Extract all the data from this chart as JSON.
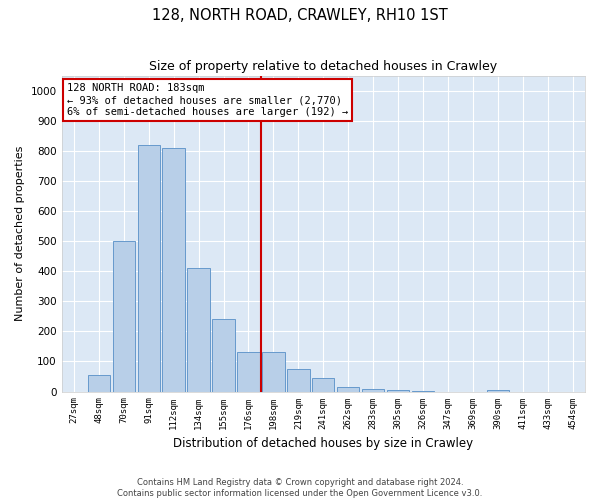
{
  "title": "128, NORTH ROAD, CRAWLEY, RH10 1ST",
  "subtitle": "Size of property relative to detached houses in Crawley",
  "xlabel": "Distribution of detached houses by size in Crawley",
  "ylabel": "Number of detached properties",
  "bar_labels": [
    "27sqm",
    "48sqm",
    "70sqm",
    "91sqm",
    "112sqm",
    "134sqm",
    "155sqm",
    "176sqm",
    "198sqm",
    "219sqm",
    "241sqm",
    "262sqm",
    "283sqm",
    "305sqm",
    "326sqm",
    "347sqm",
    "369sqm",
    "390sqm",
    "411sqm",
    "433sqm",
    "454sqm"
  ],
  "bar_values": [
    0,
    55,
    500,
    820,
    810,
    410,
    240,
    130,
    130,
    75,
    45,
    15,
    10,
    5,
    2,
    0,
    0,
    5,
    0,
    0,
    0
  ],
  "bar_color": "#b8cfe8",
  "bar_edge_color": "#6699cc",
  "background_color": "#dce8f5",
  "grid_color": "#ffffff",
  "vline_index": 7,
  "vline_color": "#cc0000",
  "annotation_text": "128 NORTH ROAD: 183sqm\n← 93% of detached houses are smaller (2,770)\n6% of semi-detached houses are larger (192) →",
  "annotation_box_color": "#cc0000",
  "ylim": [
    0,
    1050
  ],
  "yticks": [
    0,
    100,
    200,
    300,
    400,
    500,
    600,
    700,
    800,
    900,
    1000
  ],
  "footer_line1": "Contains HM Land Registry data © Crown copyright and database right 2024.",
  "footer_line2": "Contains public sector information licensed under the Open Government Licence v3.0."
}
